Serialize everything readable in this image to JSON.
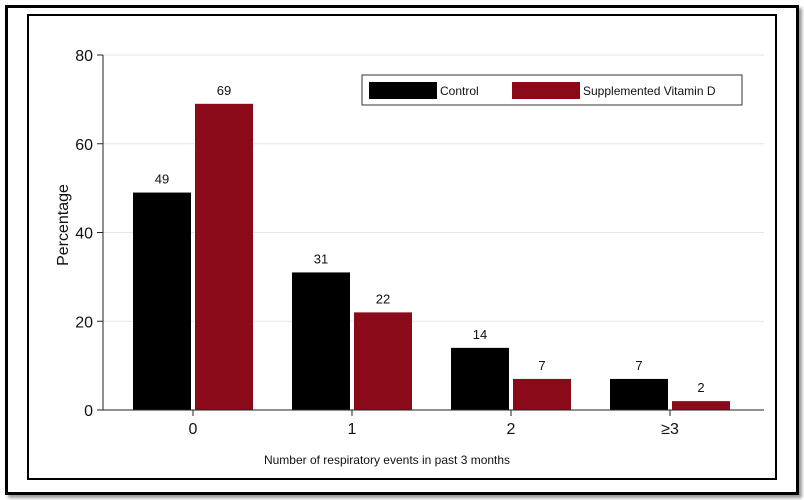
{
  "chart_data": {
    "type": "bar",
    "categories": [
      "0",
      "1",
      "2",
      "≥3"
    ],
    "series": [
      {
        "name": "Control",
        "values": [
          49,
          31,
          14,
          7
        ],
        "color": "#000000"
      },
      {
        "name": "Supplemented Vitamin D",
        "values": [
          69,
          22,
          7,
          2
        ],
        "color": "#8b0a1a"
      }
    ],
    "data_labels": [
      [
        "49",
        "31",
        "14",
        "7"
      ],
      [
        "69",
        "22",
        "7",
        "2"
      ]
    ],
    "xlabel": "Number of respiratory events in past 3 months",
    "ylabel": "Percentage",
    "ylim": [
      0,
      80
    ],
    "yticks": [
      0,
      20,
      40,
      60,
      80
    ],
    "grid": true,
    "legend_position": "top-right"
  }
}
